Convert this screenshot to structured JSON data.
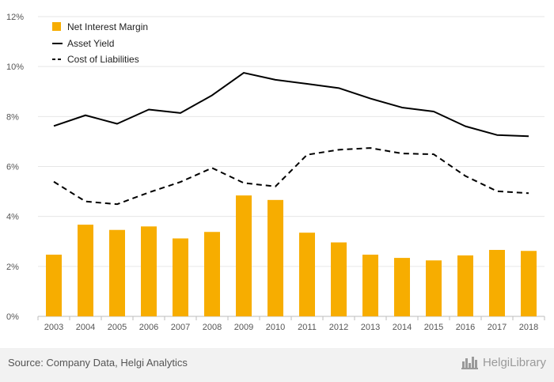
{
  "chart_data": {
    "type": "bar",
    "categories": [
      "2003",
      "2004",
      "2005",
      "2006",
      "2007",
      "2008",
      "2009",
      "2010",
      "2011",
      "2012",
      "2013",
      "2014",
      "2015",
      "2016",
      "2017",
      "2018"
    ],
    "series": [
      {
        "name": "Net Interest Margin",
        "type": "bar",
        "color": "#f7ad00",
        "values": [
          2.47,
          3.67,
          3.46,
          3.6,
          3.12,
          3.38,
          4.84,
          4.66,
          3.35,
          2.96,
          2.47,
          2.34,
          2.24,
          2.44,
          2.66,
          2.62
        ]
      },
      {
        "name": "Asset Yield",
        "type": "line",
        "dash": "solid",
        "color": "#000000",
        "values": [
          7.62,
          8.05,
          7.71,
          8.28,
          8.14,
          8.85,
          9.75,
          9.47,
          9.31,
          9.14,
          8.72,
          8.36,
          8.2,
          7.61,
          7.26,
          7.21
        ]
      },
      {
        "name": "Cost of Liabilities",
        "type": "line",
        "dash": "dashed",
        "color": "#000000",
        "values": [
          5.39,
          4.6,
          4.49,
          4.96,
          5.38,
          5.94,
          5.34,
          5.2,
          6.47,
          6.67,
          6.74,
          6.52,
          6.49,
          5.62,
          5.01,
          4.93
        ]
      }
    ],
    "ylim": [
      0,
      12
    ],
    "yticks": [
      "0%",
      "2%",
      "4%",
      "6%",
      "8%",
      "10%",
      "12%"
    ],
    "grid": true,
    "legend_position": "top-left",
    "title": "",
    "xlabel": "",
    "ylabel": ""
  },
  "footer": {
    "source": "Source: Company Data, Helgi Analytics",
    "brand": "HelgiLibrary",
    "brand_icon": "helgi-logo-icon"
  }
}
